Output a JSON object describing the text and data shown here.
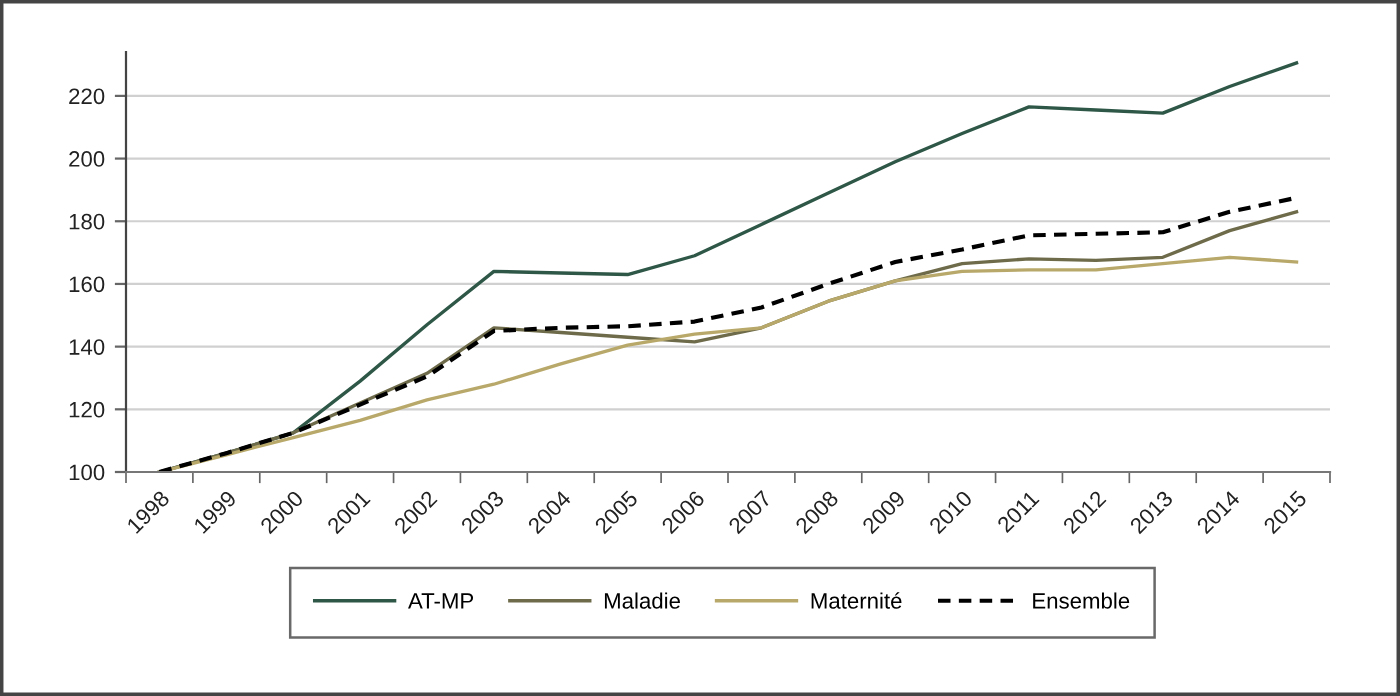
{
  "chart_data": {
    "type": "line",
    "categories": [
      "1998",
      "1999",
      "2000",
      "2001",
      "2002",
      "2003",
      "2004",
      "2005",
      "2006",
      "2007",
      "2008",
      "2009",
      "2010",
      "2011",
      "2012",
      "2013",
      "2014",
      "2015"
    ],
    "ylim": [
      100,
      234
    ],
    "yticks": [
      100,
      120,
      140,
      160,
      180,
      200,
      220
    ],
    "grid": "y",
    "legend": "bottom",
    "series": [
      {
        "name": "AT-MP",
        "color": "#2e5747",
        "line_style": "solid",
        "values": [
          100,
          106,
          112.5,
          129,
          147,
          164,
          163.5,
          163,
          169,
          179,
          189,
          199,
          208,
          216.5,
          215.5,
          214.5,
          223,
          230.5
        ]
      },
      {
        "name": "Maladie",
        "color": "#6e6b4a",
        "line_style": "solid",
        "values": [
          100,
          106,
          112.5,
          122,
          131.5,
          146,
          144.5,
          143,
          141.5,
          146,
          154.5,
          161,
          166.5,
          168,
          167.5,
          168.5,
          177,
          183
        ]
      },
      {
        "name": "Maternité",
        "color": "#b8a96a",
        "line_style": "solid",
        "values": [
          100,
          105.5,
          111,
          116.5,
          123,
          128,
          134.5,
          140.5,
          144,
          146,
          154.5,
          161,
          164,
          164.5,
          164.5,
          166.5,
          168.5,
          167
        ]
      },
      {
        "name": "Ensemble",
        "color": "#000000",
        "line_style": "dashed",
        "values": [
          100,
          106,
          112.5,
          121.5,
          130.5,
          145,
          146,
          146.5,
          148,
          152.5,
          160,
          167,
          171,
          175.5,
          176,
          176.5,
          183,
          187.5
        ]
      }
    ]
  }
}
